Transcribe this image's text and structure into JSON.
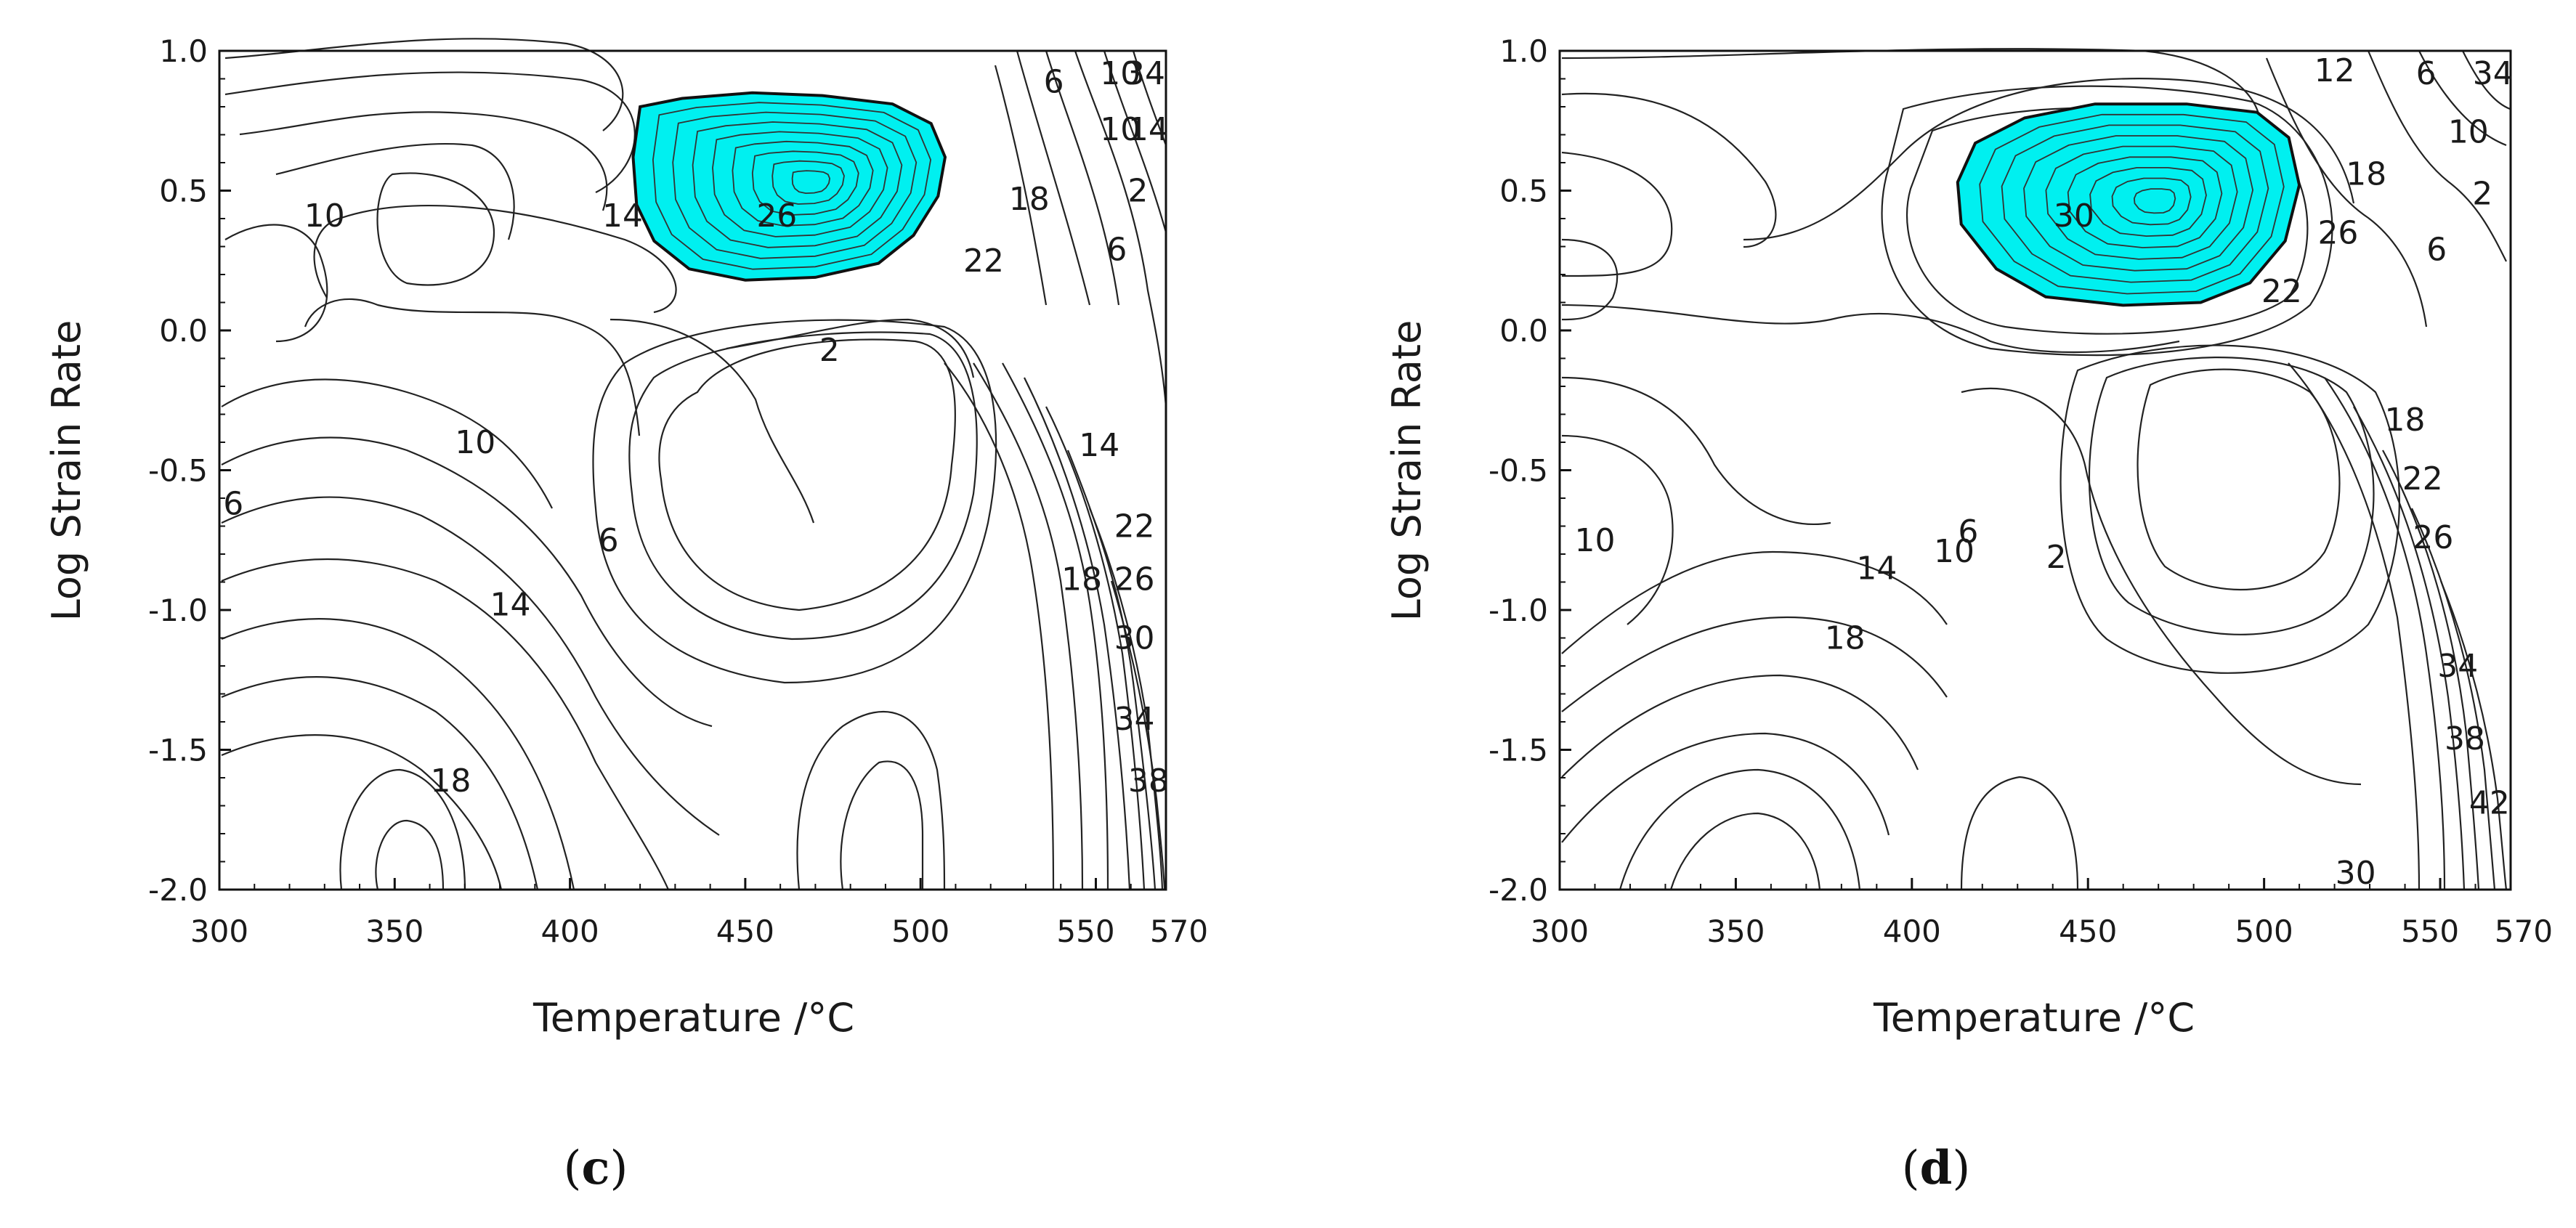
{
  "chart_data": [
    {
      "type": "contour",
      "panel": "c",
      "xlabel": "Temperature /°C",
      "ylabel": "Log Strain Rate",
      "xlim": [
        300,
        570
      ],
      "ylim": [
        -2.0,
        1.0
      ],
      "x_ticks": [
        "300",
        "350",
        "400",
        "450",
        "500",
        "550",
        "570"
      ],
      "x_tick_values": [
        300,
        350,
        400,
        450,
        500,
        550,
        570
      ],
      "y_ticks": [
        "1.0",
        "0.5",
        "0.0",
        "-0.5",
        "-1.0",
        "-1.5",
        "-2.0"
      ],
      "y_tick_values": [
        1.0,
        0.5,
        0.0,
        -0.5,
        -1.0,
        -1.5,
        -2.0
      ],
      "peak_region_color": "#00f0f0",
      "peak_region": [
        [
          420,
          0.8
        ],
        [
          432,
          0.83
        ],
        [
          452,
          0.85
        ],
        [
          472,
          0.84
        ],
        [
          492,
          0.81
        ],
        [
          503,
          0.74
        ],
        [
          507,
          0.62
        ],
        [
          505,
          0.48
        ],
        [
          498,
          0.34
        ],
        [
          488,
          0.24
        ],
        [
          470,
          0.19
        ],
        [
          450,
          0.18
        ],
        [
          434,
          0.22
        ],
        [
          424,
          0.32
        ],
        [
          419,
          0.45
        ],
        [
          418,
          0.62
        ]
      ],
      "contour_labels": [
        {
          "text": "6",
          "x": 538,
          "y": 0.89
        },
        {
          "text": "10",
          "x": 557,
          "y": 0.92
        },
        {
          "text": "34",
          "x": 564,
          "y": 0.92
        },
        {
          "text": "10",
          "x": 557,
          "y": 0.72
        },
        {
          "text": "14",
          "x": 565,
          "y": 0.72
        },
        {
          "text": "10",
          "x": 330,
          "y": 0.41
        },
        {
          "text": "14",
          "x": 415,
          "y": 0.41
        },
        {
          "text": "26",
          "x": 459,
          "y": 0.41
        },
        {
          "text": "18",
          "x": 531,
          "y": 0.47
        },
        {
          "text": "2",
          "x": 562,
          "y": 0.5
        },
        {
          "text": "22",
          "x": 518,
          "y": 0.25
        },
        {
          "text": "6",
          "x": 556,
          "y": 0.29
        },
        {
          "text": "2",
          "x": 474,
          "y": -0.07
        },
        {
          "text": "10",
          "x": 373,
          "y": -0.4
        },
        {
          "text": "14",
          "x": 551,
          "y": -0.41
        },
        {
          "text": "6",
          "x": 304,
          "y": -0.62
        },
        {
          "text": "22",
          "x": 561,
          "y": -0.7
        },
        {
          "text": "6",
          "x": 411,
          "y": -0.75
        },
        {
          "text": "18",
          "x": 546,
          "y": -0.89
        },
        {
          "text": "26",
          "x": 561,
          "y": -0.89
        },
        {
          "text": "14",
          "x": 383,
          "y": -0.98
        },
        {
          "text": "30",
          "x": 561,
          "y": -1.1
        },
        {
          "text": "34",
          "x": 561,
          "y": -1.39
        },
        {
          "text": "18",
          "x": 366,
          "y": -1.61
        },
        {
          "text": "38",
          "x": 565,
          "y": -1.61
        }
      ]
    },
    {
      "type": "contour",
      "panel": "d",
      "xlabel": "Temperature /°C",
      "ylabel": "Log Strain Rate",
      "xlim": [
        300,
        570
      ],
      "ylim": [
        -2.0,
        1.0
      ],
      "x_ticks": [
        "300",
        "350",
        "400",
        "450",
        "500",
        "550",
        "570"
      ],
      "x_tick_values": [
        300,
        350,
        400,
        450,
        500,
        550,
        570
      ],
      "y_ticks": [
        "1.0",
        "0.5",
        "0.0",
        "-0.5",
        "-1.0",
        "-1.5",
        "-2.0"
      ],
      "y_tick_values": [
        1.0,
        0.5,
        0.0,
        -0.5,
        -1.0,
        -1.5,
        -2.0
      ],
      "peak_region_color": "#00f0f0",
      "peak_region": [
        [
          418,
          0.67
        ],
        [
          432,
          0.76
        ],
        [
          452,
          0.81
        ],
        [
          478,
          0.81
        ],
        [
          498,
          0.78
        ],
        [
          507,
          0.69
        ],
        [
          510,
          0.52
        ],
        [
          506,
          0.32
        ],
        [
          496,
          0.17
        ],
        [
          482,
          0.1
        ],
        [
          460,
          0.09
        ],
        [
          438,
          0.12
        ],
        [
          424,
          0.22
        ],
        [
          414,
          0.38
        ],
        [
          413,
          0.53
        ]
      ],
      "contour_labels": [
        {
          "text": "12",
          "x": 520,
          "y": 0.93
        },
        {
          "text": "6",
          "x": 546,
          "y": 0.92
        },
        {
          "text": "34",
          "x": 565,
          "y": 0.92
        },
        {
          "text": "10",
          "x": 558,
          "y": 0.71
        },
        {
          "text": "18",
          "x": 529,
          "y": 0.56
        },
        {
          "text": "2",
          "x": 562,
          "y": 0.49
        },
        {
          "text": "30",
          "x": 446,
          "y": 0.41
        },
        {
          "text": "26",
          "x": 521,
          "y": 0.35
        },
        {
          "text": "6",
          "x": 549,
          "y": 0.29
        },
        {
          "text": "22",
          "x": 505,
          "y": 0.14
        },
        {
          "text": "18",
          "x": 540,
          "y": -0.32
        },
        {
          "text": "22",
          "x": 545,
          "y": -0.53
        },
        {
          "text": "26",
          "x": 548,
          "y": -0.74
        },
        {
          "text": "10",
          "x": 310,
          "y": -0.75
        },
        {
          "text": "6",
          "x": 416,
          "y": -0.72
        },
        {
          "text": "10",
          "x": 412,
          "y": -0.79
        },
        {
          "text": "2",
          "x": 441,
          "y": -0.81
        },
        {
          "text": "14",
          "x": 390,
          "y": -0.85
        },
        {
          "text": "18",
          "x": 381,
          "y": -1.1
        },
        {
          "text": "34",
          "x": 555,
          "y": -1.2
        },
        {
          "text": "38",
          "x": 557,
          "y": -1.46
        },
        {
          "text": "42",
          "x": 564,
          "y": -1.69
        },
        {
          "text": "30",
          "x": 526,
          "y": -1.94
        }
      ]
    }
  ],
  "captions": [
    "(c)",
    "(d)"
  ]
}
